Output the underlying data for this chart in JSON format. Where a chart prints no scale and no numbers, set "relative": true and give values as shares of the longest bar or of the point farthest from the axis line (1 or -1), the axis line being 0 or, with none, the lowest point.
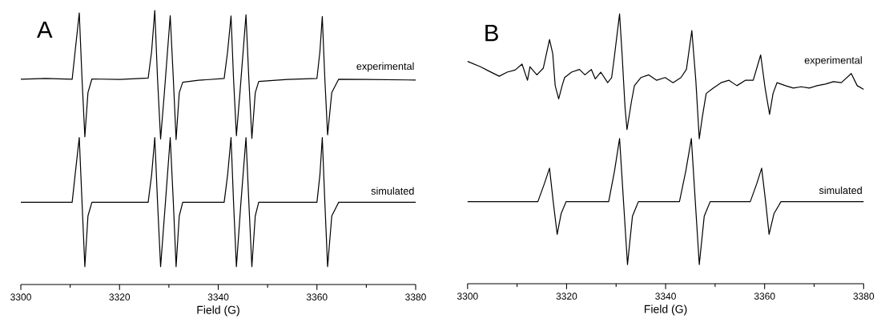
{
  "chart_data": [
    {
      "type": "line",
      "title": "A",
      "xlabel": "Field (G)",
      "relative": true,
      "xlim": [
        3300,
        3380
      ],
      "xticks": [
        3300,
        {
          "value": 3310,
          "label": null
        },
        3320,
        {
          "value": 3330,
          "label": null
        },
        3340,
        {
          "value": 3350,
          "label": null
        },
        3360,
        {
          "value": 3370,
          "label": null
        },
        3380
      ],
      "series": [
        {
          "name": "experimental",
          "color": "#000000",
          "x": [
            3300,
            3305,
            3310.4,
            3311.0,
            3311.84,
            3312.4,
            3312.97,
            3313.6,
            3314.4,
            3320,
            3325.8,
            3326.5,
            3327.14,
            3327.7,
            3328.32,
            3329.03,
            3330.27,
            3330.9,
            3331.46,
            3332.1,
            3332.8,
            3336,
            3341.2,
            3341.9,
            3342.59,
            3343.1,
            3343.68,
            3344.43,
            3345.62,
            3346.2,
            3346.81,
            3347.5,
            3348.2,
            3354,
            3360.0,
            3360.6,
            3361.08,
            3361.6,
            3362.16,
            3363.0,
            3364.4,
            3370,
            3380
          ],
          "values": [
            0.749,
            0.752,
            0.749,
            0.85,
            0.991,
            0.75,
            0.539,
            0.7,
            0.75,
            0.748,
            0.753,
            0.85,
            1.0,
            0.75,
            0.531,
            0.687,
            0.981,
            0.75,
            0.529,
            0.7,
            0.738,
            0.745,
            0.752,
            0.85,
            0.98,
            0.75,
            0.543,
            0.708,
            0.984,
            0.75,
            0.533,
            0.7,
            0.741,
            0.748,
            0.752,
            0.85,
            0.978,
            0.75,
            0.546,
            0.7,
            0.749,
            0.748,
            0.746
          ]
        },
        {
          "name": "simulated",
          "color": "#000000",
          "x": [
            3300,
            3310.4,
            3311.0,
            3311.84,
            3312.4,
            3312.97,
            3313.6,
            3314.4,
            3325.8,
            3326.5,
            3327.14,
            3327.7,
            3328.32,
            3329.3,
            3330.27,
            3330.9,
            3331.46,
            3332.1,
            3332.8,
            3341.2,
            3341.9,
            3342.59,
            3343.1,
            3343.68,
            3344.6,
            3345.62,
            3346.2,
            3346.81,
            3347.5,
            3348.2,
            3360.0,
            3360.6,
            3361.08,
            3361.6,
            3362.16,
            3363.0,
            3364.4,
            3380
          ],
          "values": [
            0.3,
            0.3,
            0.4,
            0.536,
            0.3,
            0.065,
            0.25,
            0.3,
            0.3,
            0.4,
            0.536,
            0.3,
            0.065,
            0.3,
            0.536,
            0.3,
            0.065,
            0.25,
            0.3,
            0.3,
            0.4,
            0.536,
            0.3,
            0.065,
            0.3,
            0.536,
            0.3,
            0.065,
            0.25,
            0.3,
            0.3,
            0.4,
            0.536,
            0.3,
            0.065,
            0.25,
            0.3,
            0.3
          ]
        }
      ]
    },
    {
      "type": "line",
      "title": "B",
      "xlabel": "Field (G)",
      "relative": true,
      "xlim": [
        3300,
        3380
      ],
      "xticks": [
        3300,
        {
          "value": 3310,
          "label": null
        },
        3320,
        {
          "value": 3330,
          "label": null
        },
        3340,
        {
          "value": 3350,
          "label": null
        },
        3360,
        {
          "value": 3370,
          "label": null
        },
        3380
      ],
      "series": [
        {
          "name": "experimental",
          "color": "#000000",
          "x": [
            3300,
            3302.6,
            3304.2,
            3306.4,
            3308.0,
            3309.6,
            3311.0,
            3312.1,
            3312.6,
            3314.0,
            3315.3,
            3316.55,
            3317.2,
            3317.7,
            3318.4,
            3319.1,
            3319.6,
            3321.0,
            3322.6,
            3323.7,
            3325.0,
            3325.8,
            3326.9,
            3328.3,
            3329.1,
            3329.6,
            3330.7,
            3331.2,
            3331.8,
            3332.2,
            3333.1,
            3333.7,
            3335.0,
            3336.6,
            3338.2,
            3339.9,
            3341.5,
            3343.1,
            3344.2,
            3345.3,
            3346.1,
            3346.8,
            3347.4,
            3348.2,
            3349.6,
            3351.2,
            3352.8,
            3354.4,
            3356.1,
            3357.7,
            3359.2,
            3360.1,
            3361.0,
            3361.7,
            3362.5,
            3364.2,
            3365.8,
            3367.4,
            3369.0,
            3370.6,
            3372.3,
            3373.9,
            3375.5,
            3377.5,
            3378.7,
            3380
          ],
          "values": [
            0.824,
            0.804,
            0.789,
            0.769,
            0.784,
            0.792,
            0.814,
            0.754,
            0.804,
            0.774,
            0.799,
            0.905,
            0.853,
            0.734,
            0.685,
            0.734,
            0.764,
            0.784,
            0.794,
            0.774,
            0.794,
            0.759,
            0.784,
            0.745,
            0.764,
            0.834,
            1.0,
            0.853,
            0.655,
            0.571,
            0.675,
            0.734,
            0.764,
            0.774,
            0.754,
            0.764,
            0.745,
            0.764,
            0.794,
            0.938,
            0.754,
            0.537,
            0.616,
            0.705,
            0.725,
            0.745,
            0.754,
            0.734,
            0.754,
            0.754,
            0.848,
            0.725,
            0.628,
            0.705,
            0.745,
            0.734,
            0.725,
            0.73,
            0.725,
            0.734,
            0.74,
            0.749,
            0.745,
            0.779,
            0.734,
            0.72
          ]
        },
        {
          "name": "simulated",
          "color": "#000000",
          "x": [
            3300,
            3314.2,
            3315.5,
            3316.55,
            3317.3,
            3318.1,
            3318.9,
            3319.9,
            3328.5,
            3329.7,
            3330.7,
            3331.5,
            3332.3,
            3333.3,
            3334.5,
            3342.8,
            3344.1,
            3345.2,
            3346.0,
            3346.8,
            3347.8,
            3349.0,
            3357.1,
            3358.4,
            3359.4,
            3360.2,
            3360.9,
            3361.9,
            3363.3,
            3380
          ],
          "values": [
            0.304,
            0.304,
            0.37,
            0.428,
            0.304,
            0.183,
            0.26,
            0.304,
            0.304,
            0.42,
            0.538,
            0.304,
            0.071,
            0.25,
            0.304,
            0.304,
            0.42,
            0.538,
            0.304,
            0.071,
            0.25,
            0.304,
            0.304,
            0.37,
            0.428,
            0.304,
            0.183,
            0.26,
            0.304,
            0.304
          ]
        }
      ]
    }
  ]
}
